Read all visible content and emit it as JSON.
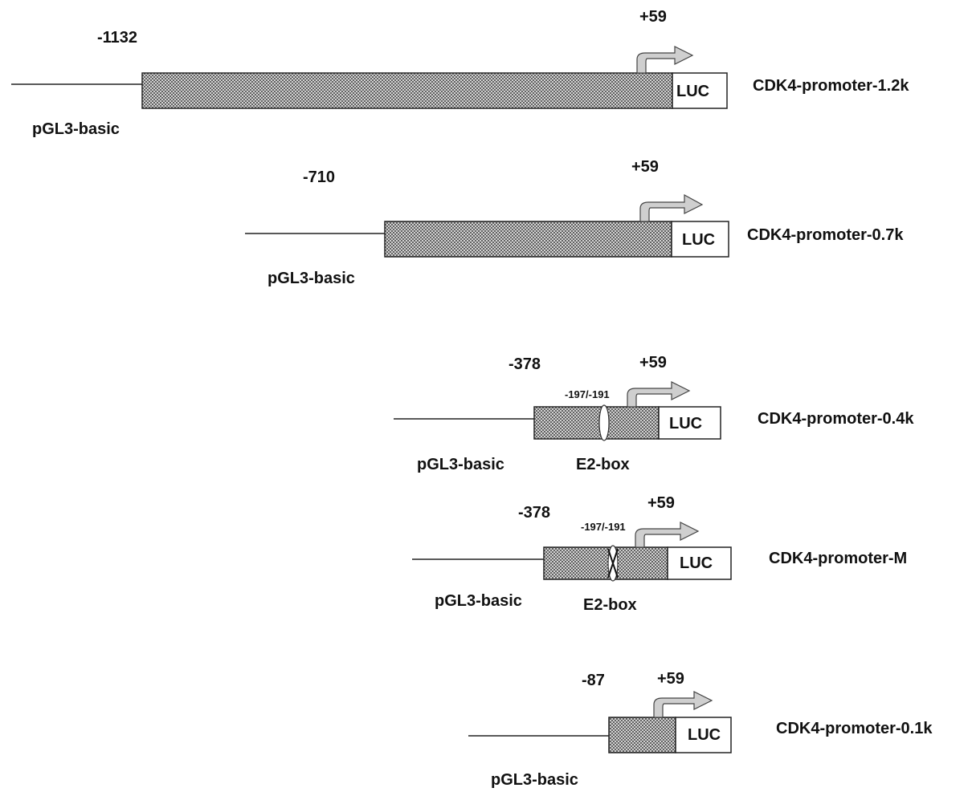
{
  "constructs": [
    {
      "name": "CDK4-promoter-1.2k",
      "vector": "pGL3-basic",
      "start": "-1132",
      "end": "+59",
      "reporter": "LUC"
    },
    {
      "name": "CDK4-promoter-0.7k",
      "vector": "pGL3-basic",
      "start": "-710",
      "end": "+59",
      "reporter": "LUC"
    },
    {
      "name": "CDK4-promoter-0.4k",
      "vector": "pGL3-basic",
      "start": "-378",
      "end": "+59",
      "reporter": "LUC",
      "site": "-197/-191",
      "element": "E2-box"
    },
    {
      "name": "CDK4-promoter-M",
      "vector": "pGL3-basic",
      "start": "-378",
      "end": "+59",
      "reporter": "LUC",
      "site": "-197/-191",
      "element": "E2-box",
      "mutated": true
    },
    {
      "name": "CDK4-promoter-0.1k",
      "vector": "pGL3-basic",
      "start": "-87",
      "end": "+59",
      "reporter": "LUC"
    }
  ],
  "colors": {
    "promoter_fill": "#8c8c8c",
    "arrow_fill": "#cfcfcf",
    "line": "#222222"
  }
}
